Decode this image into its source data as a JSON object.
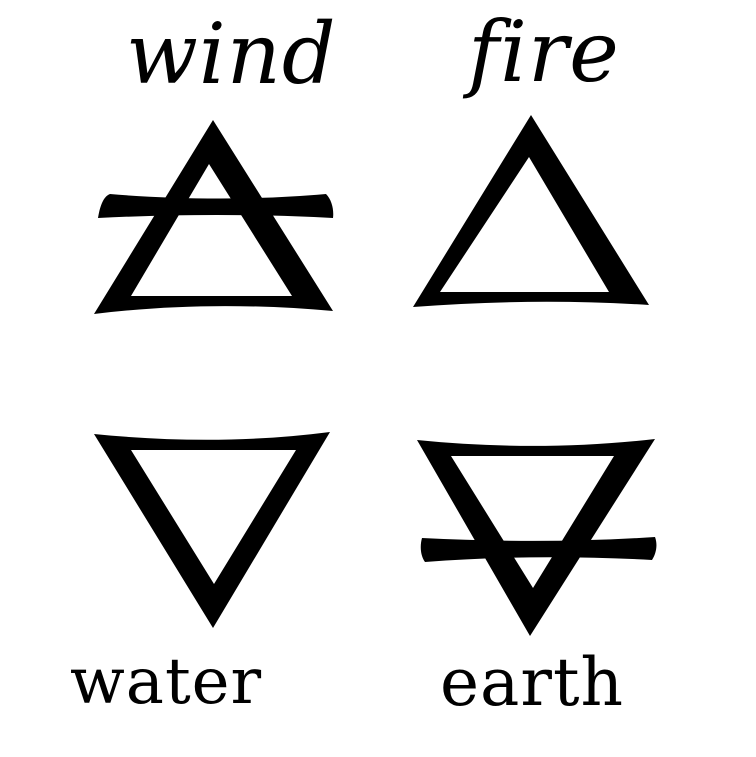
{
  "elements": {
    "wind": {
      "label": "wind"
    },
    "fire": {
      "label": "fire"
    },
    "water": {
      "label": "water"
    },
    "earth": {
      "label": "earth"
    }
  },
  "colors": {
    "ink": "#000000",
    "background": "#ffffff"
  },
  "symbols": {
    "wind": "air-alchemical-symbol",
    "fire": "fire-alchemical-symbol",
    "water": "water-alchemical-symbol",
    "earth": "earth-alchemical-symbol"
  }
}
